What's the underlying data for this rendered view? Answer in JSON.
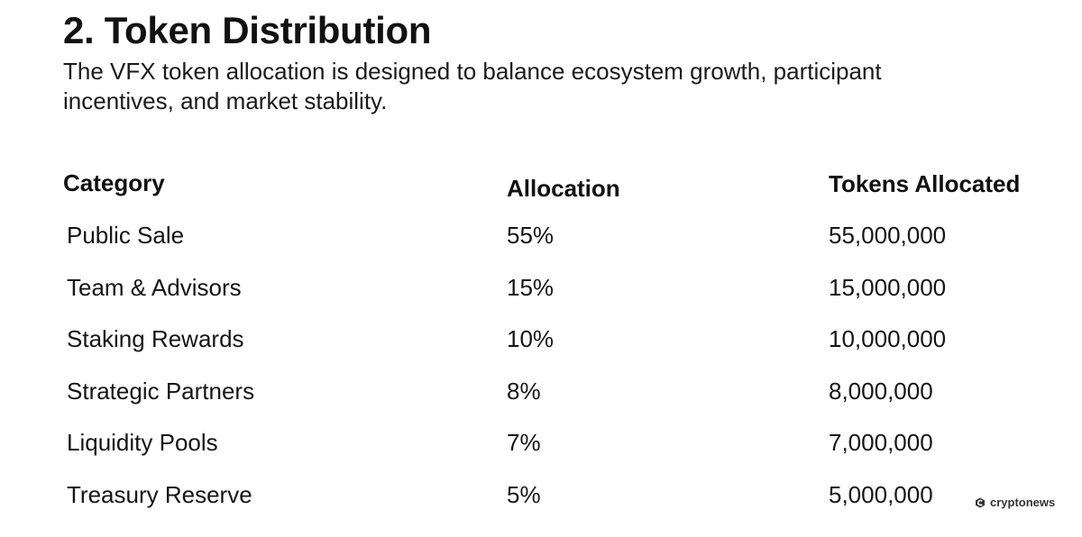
{
  "header": {
    "title": "2. Token Distribution",
    "description": "The VFX token allocation is designed to balance ecosystem growth, participant incentives, and market stability."
  },
  "table": {
    "columns": [
      "Category",
      "Allocation",
      "Tokens Allocated"
    ],
    "rows": [
      {
        "category": "Public Sale",
        "allocation": "55%",
        "tokens": "55,000,000"
      },
      {
        "category": "Team & Advisors",
        "allocation": "15%",
        "tokens": "15,000,000"
      },
      {
        "category": "Staking Rewards",
        "allocation": "10%",
        "tokens": "10,000,000"
      },
      {
        "category": "Strategic Partners",
        "allocation": "8%",
        "tokens": "8,000,000"
      },
      {
        "category": "Liquidity Pools",
        "allocation": "7%",
        "tokens": "7,000,000"
      },
      {
        "category": "Treasury Reserve",
        "allocation": "5%",
        "tokens": "5,000,000"
      }
    ]
  },
  "watermark": {
    "text": "cryptonews",
    "icon": "cryptonews-logo-icon",
    "color": "#333333"
  }
}
